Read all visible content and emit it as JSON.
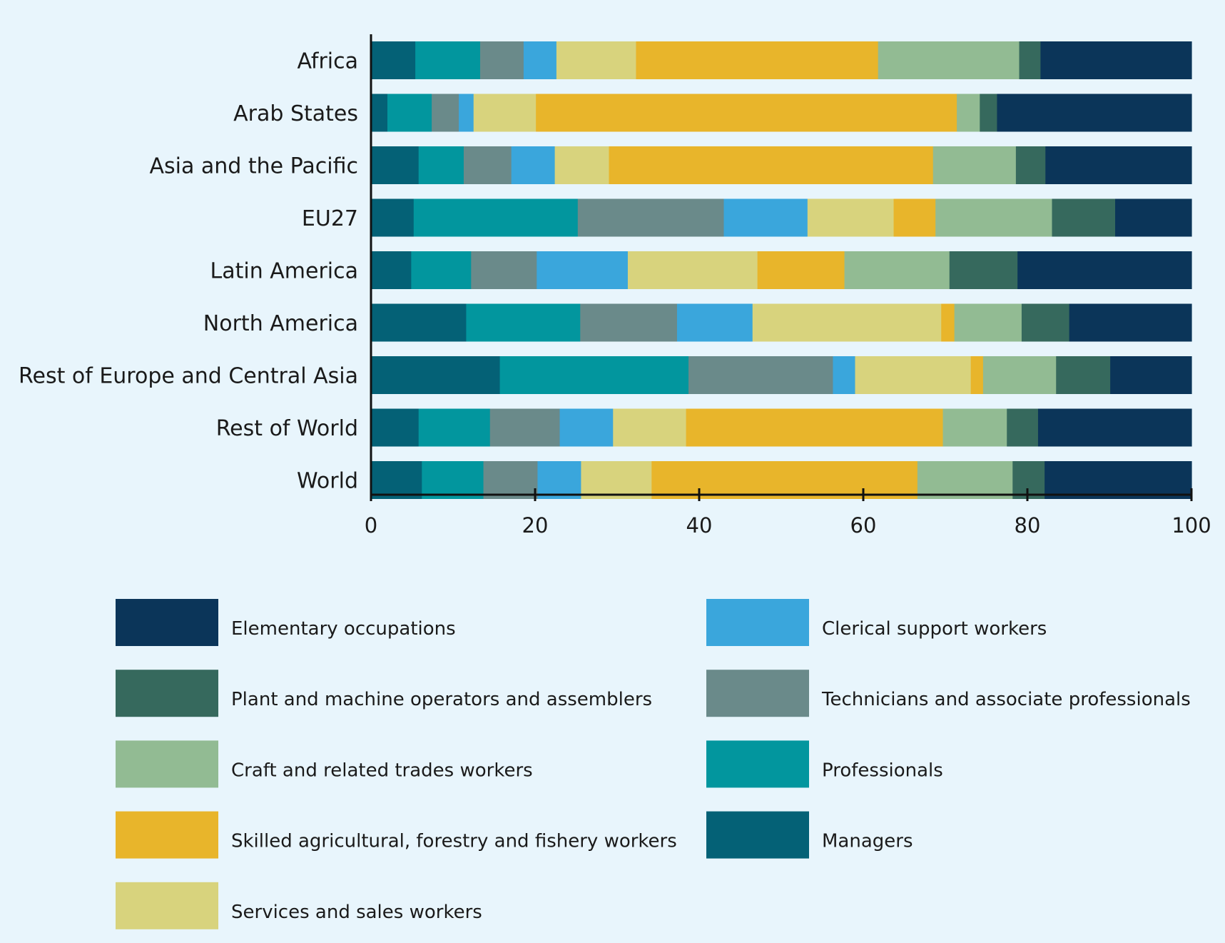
{
  "chart_data": {
    "type": "bar",
    "orientation": "horizontal",
    "stacked": true,
    "title": "",
    "xlabel": "",
    "ylabel": "",
    "xlim": [
      0,
      100
    ],
    "xticks": [
      "0",
      "20",
      "40",
      "60",
      "80",
      "100"
    ],
    "categories": [
      "Africa",
      "Arab States",
      "Asia and the Pacific",
      "EU27",
      "Latin America",
      "North America",
      "Rest of Europe and Central Asia",
      "Rest of World",
      "World"
    ],
    "series": [
      {
        "name": "Managers",
        "color": "#046176",
        "values": [
          5.4,
          2.0,
          5.8,
          5.2,
          4.9,
          11.6,
          15.7,
          5.8,
          6.2
        ]
      },
      {
        "name": "Professionals",
        "color": "#02969e",
        "values": [
          7.9,
          5.4,
          5.5,
          20.0,
          7.3,
          13.9,
          23.0,
          8.7,
          7.5
        ]
      },
      {
        "name": "Technicians and associate professionals",
        "color": "#6a8a8a",
        "values": [
          5.3,
          3.3,
          5.8,
          17.8,
          8.0,
          11.8,
          17.6,
          8.5,
          6.6
        ]
      },
      {
        "name": "Clerical support workers",
        "color": "#3aa6dc",
        "values": [
          4.0,
          1.8,
          5.3,
          10.2,
          11.1,
          9.2,
          2.7,
          6.5,
          5.3
        ]
      },
      {
        "name": "Services and sales workers",
        "color": "#d8d37d",
        "values": [
          9.7,
          7.6,
          6.6,
          10.5,
          15.8,
          23.0,
          14.1,
          8.9,
          8.6
        ]
      },
      {
        "name": "Skilled agricultural, forestry and fishery workers",
        "color": "#e8b52b",
        "values": [
          29.5,
          51.3,
          39.5,
          5.1,
          10.6,
          1.6,
          1.5,
          31.3,
          32.4
        ]
      },
      {
        "name": "Craft and related trades workers",
        "color": "#92bb93",
        "values": [
          17.2,
          2.8,
          10.1,
          14.2,
          12.8,
          8.2,
          8.9,
          7.8,
          11.6
        ]
      },
      {
        "name": "Plant and machine operators and assemblers",
        "color": "#36695d",
        "values": [
          2.6,
          2.1,
          3.6,
          7.7,
          8.3,
          5.8,
          6.6,
          3.8,
          3.9
        ]
      },
      {
        "name": "Elementary occupations",
        "color": "#0b3559",
        "values": [
          18.4,
          23.7,
          17.8,
          9.3,
          21.2,
          14.9,
          9.9,
          18.7,
          17.9
        ]
      }
    ],
    "legend": {
      "position": "bottom",
      "columns": [
        [
          "Elementary occupations",
          "Plant and machine operators and assemblers",
          "Craft and related trades workers",
          "Skilled agricultural, forestry and fishery workers",
          "Services and sales workers"
        ],
        [
          "Clerical support workers",
          "Technicians and associate professionals",
          "Professionals",
          "Managers"
        ]
      ]
    }
  }
}
